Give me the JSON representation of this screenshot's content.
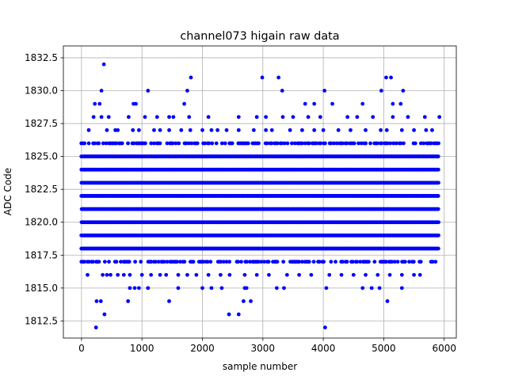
{
  "chart_data": {
    "type": "scatter",
    "title": "channel073 higain raw data",
    "xlabel": "sample number",
    "ylabel": "ADC Code",
    "xlim": [
      -300,
      6200
    ],
    "ylim": [
      1811.2,
      1833.4
    ],
    "xticks": [
      0,
      1000,
      2000,
      3000,
      4000,
      5000,
      6000
    ],
    "xtick_labels": [
      "0",
      "1000",
      "2000",
      "3000",
      "4000",
      "5000",
      "6000"
    ],
    "yticks": [
      1812.5,
      1815.0,
      1817.5,
      1820.0,
      1822.5,
      1825.0,
      1827.5,
      1830.0,
      1832.5
    ],
    "ytick_labels": [
      "1812.5",
      "1815.0",
      "1817.5",
      "1820.0",
      "1822.5",
      "1825.0",
      "1827.5",
      "1830.0",
      "1832.5"
    ],
    "grid": true,
    "marker_color": "#0000ff",
    "n_samples": 5904,
    "dense_levels": [
      1817,
      1818,
      1819,
      1820,
      1821,
      1822,
      1823,
      1824,
      1825,
      1826
    ],
    "sparse_levels": [
      {
        "y": 1816,
        "x": [
          100,
          350,
          420,
          480,
          600,
          700,
          800,
          1000,
          1150,
          1300,
          1400,
          1600,
          1750,
          1900,
          2100,
          2300,
          2450,
          2700,
          2900,
          3100,
          3400,
          3600,
          3800,
          4100,
          4300,
          4500,
          4700,
          4900,
          5100,
          5300,
          5500,
          5600
        ]
      },
      {
        "y": 1827,
        "x": [
          120,
          420,
          560,
          600,
          850,
          950,
          1200,
          1300,
          1450,
          1650,
          1800,
          2000,
          2150,
          2250,
          2400,
          2600,
          2850,
          3050,
          3150,
          3450,
          3650,
          3850,
          4000,
          4250,
          4450,
          4700,
          4950,
          5050,
          5300,
          5500,
          5700,
          5800
        ]
      }
    ],
    "outliers": [
      {
        "x": 240,
        "y": 1812
      },
      {
        "x": 4030,
        "y": 1812
      },
      {
        "x": 380,
        "y": 1813
      },
      {
        "x": 2440,
        "y": 1813
      },
      {
        "x": 2600,
        "y": 1813
      },
      {
        "x": 250,
        "y": 1814
      },
      {
        "x": 320,
        "y": 1814
      },
      {
        "x": 770,
        "y": 1814
      },
      {
        "x": 1450,
        "y": 1814
      },
      {
        "x": 2680,
        "y": 1814
      },
      {
        "x": 2800,
        "y": 1814
      },
      {
        "x": 5060,
        "y": 1814
      },
      {
        "x": 800,
        "y": 1815
      },
      {
        "x": 880,
        "y": 1815
      },
      {
        "x": 950,
        "y": 1815
      },
      {
        "x": 1100,
        "y": 1815
      },
      {
        "x": 1600,
        "y": 1815
      },
      {
        "x": 2000,
        "y": 1815
      },
      {
        "x": 2150,
        "y": 1815
      },
      {
        "x": 2320,
        "y": 1815
      },
      {
        "x": 2700,
        "y": 1815
      },
      {
        "x": 2730,
        "y": 1815
      },
      {
        "x": 3230,
        "y": 1815
      },
      {
        "x": 3350,
        "y": 1815
      },
      {
        "x": 4050,
        "y": 1815
      },
      {
        "x": 4650,
        "y": 1815
      },
      {
        "x": 4800,
        "y": 1815
      },
      {
        "x": 4930,
        "y": 1815
      },
      {
        "x": 5300,
        "y": 1815
      },
      {
        "x": 200,
        "y": 1828
      },
      {
        "x": 330,
        "y": 1828
      },
      {
        "x": 450,
        "y": 1828
      },
      {
        "x": 780,
        "y": 1828
      },
      {
        "x": 1050,
        "y": 1828
      },
      {
        "x": 1250,
        "y": 1828
      },
      {
        "x": 1450,
        "y": 1828
      },
      {
        "x": 1520,
        "y": 1828
      },
      {
        "x": 1780,
        "y": 1828
      },
      {
        "x": 2100,
        "y": 1828
      },
      {
        "x": 2600,
        "y": 1828
      },
      {
        "x": 2900,
        "y": 1828
      },
      {
        "x": 3050,
        "y": 1828
      },
      {
        "x": 3330,
        "y": 1828
      },
      {
        "x": 3500,
        "y": 1828
      },
      {
        "x": 3750,
        "y": 1828
      },
      {
        "x": 3950,
        "y": 1828
      },
      {
        "x": 4400,
        "y": 1828
      },
      {
        "x": 4560,
        "y": 1828
      },
      {
        "x": 4820,
        "y": 1828
      },
      {
        "x": 5150,
        "y": 1828
      },
      {
        "x": 5400,
        "y": 1828
      },
      {
        "x": 5680,
        "y": 1828
      },
      {
        "x": 5920,
        "y": 1828
      },
      {
        "x": 220,
        "y": 1829
      },
      {
        "x": 300,
        "y": 1829
      },
      {
        "x": 860,
        "y": 1829
      },
      {
        "x": 900,
        "y": 1829
      },
      {
        "x": 1700,
        "y": 1829
      },
      {
        "x": 3700,
        "y": 1829
      },
      {
        "x": 3850,
        "y": 1829
      },
      {
        "x": 4150,
        "y": 1829
      },
      {
        "x": 4650,
        "y": 1829
      },
      {
        "x": 5150,
        "y": 1829
      },
      {
        "x": 5280,
        "y": 1829
      },
      {
        "x": 330,
        "y": 1830
      },
      {
        "x": 1100,
        "y": 1830
      },
      {
        "x": 1750,
        "y": 1830
      },
      {
        "x": 3320,
        "y": 1830
      },
      {
        "x": 4020,
        "y": 1830
      },
      {
        "x": 4960,
        "y": 1830
      },
      {
        "x": 5320,
        "y": 1830
      },
      {
        "x": 1810,
        "y": 1831
      },
      {
        "x": 2990,
        "y": 1831
      },
      {
        "x": 3260,
        "y": 1831
      },
      {
        "x": 5040,
        "y": 1831
      },
      {
        "x": 5120,
        "y": 1831
      },
      {
        "x": 370,
        "y": 1832
      }
    ]
  }
}
